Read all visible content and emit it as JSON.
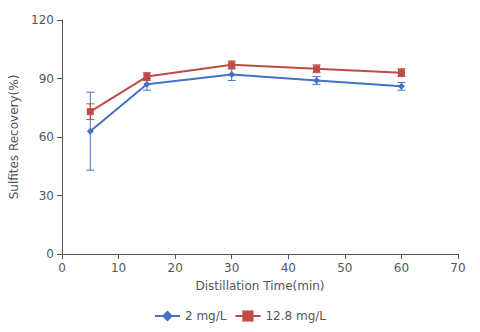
{
  "chart_data": {
    "type": "line",
    "x": [
      5,
      15,
      30,
      45,
      60
    ],
    "series": [
      {
        "name": "2 mg/L",
        "color": "#4472C4",
        "marker": "diamond",
        "values": [
          63,
          87,
          92,
          89,
          86
        ],
        "yerr": [
          20,
          3,
          3,
          2,
          2
        ]
      },
      {
        "name": "12.8 mg/L",
        "color": "#BE4B48",
        "marker": "square",
        "values": [
          73,
          91,
          97,
          95,
          93
        ],
        "yerr": [
          4,
          2,
          2,
          2,
          2
        ]
      }
    ],
    "xlabel": "Distillation Time(min)",
    "ylabel": "Sulfites Recovery(%)",
    "xlim": [
      0,
      70
    ],
    "ylim": [
      0,
      120
    ],
    "xticks": [
      0,
      10,
      20,
      30,
      40,
      50,
      60,
      70
    ],
    "yticks": [
      0,
      30,
      60,
      90,
      120
    ],
    "grid": false,
    "legend": "bottom"
  }
}
